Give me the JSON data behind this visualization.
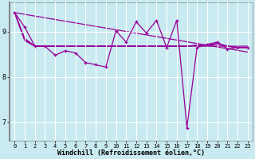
{
  "bg_color": "#c8eaf0",
  "grid_color": "#ffffff",
  "line_color": "#990099",
  "xlabel": "Windchill (Refroidissement éolien,°C)",
  "xlabel_fontsize": 6.0,
  "ylabel_ticks": [
    7,
    8,
    9
  ],
  "xlim": [
    -0.5,
    23.5
  ],
  "ylim": [
    6.6,
    9.65
  ],
  "x_ticks": [
    0,
    1,
    2,
    3,
    4,
    5,
    6,
    7,
    8,
    9,
    10,
    11,
    12,
    13,
    14,
    15,
    16,
    17,
    18,
    19,
    20,
    21,
    22,
    23
  ],
  "main_x": [
    0,
    1,
    2,
    3,
    4,
    5,
    6,
    7,
    8,
    9,
    10,
    11,
    12,
    13,
    14,
    15,
    16,
    17,
    18,
    19,
    20,
    21,
    22,
    23
  ],
  "main_y": [
    9.42,
    9.1,
    8.68,
    8.68,
    8.48,
    8.58,
    8.53,
    8.32,
    8.27,
    8.22,
    9.02,
    8.77,
    9.22,
    8.97,
    9.25,
    8.65,
    9.25,
    6.88,
    8.65,
    8.72,
    8.77,
    8.62,
    8.65,
    8.65
  ],
  "smooth_x": [
    0,
    1,
    2,
    3,
    4,
    5,
    6,
    7,
    8,
    9,
    10,
    11,
    12,
    13,
    14,
    15,
    16,
    17,
    18,
    19,
    20,
    21,
    22,
    23
  ],
  "smooth_y": [
    9.42,
    8.85,
    8.68,
    8.68,
    8.68,
    8.68,
    8.68,
    8.68,
    8.68,
    8.68,
    8.68,
    8.68,
    8.68,
    8.68,
    8.68,
    8.68,
    8.68,
    8.68,
    8.68,
    8.68,
    8.68,
    8.68,
    8.68,
    8.68
  ],
  "smooth2_y": [
    9.42,
    8.82,
    8.68,
    8.68,
    8.68,
    8.68,
    8.68,
    8.68,
    8.68,
    8.68,
    8.68,
    8.68,
    8.68,
    8.68,
    8.68,
    8.68,
    8.68,
    8.68,
    8.7,
    8.7,
    8.72,
    8.68,
    8.65,
    8.65
  ],
  "smooth3_y": [
    9.42,
    8.8,
    8.68,
    8.68,
    8.68,
    8.68,
    8.68,
    8.68,
    8.68,
    8.68,
    8.68,
    8.68,
    8.68,
    8.68,
    8.68,
    8.68,
    8.68,
    8.68,
    8.7,
    8.7,
    8.75,
    8.68,
    8.65,
    8.65
  ],
  "decline_x": [
    0,
    23
  ],
  "decline_y": [
    9.42,
    8.55
  ]
}
